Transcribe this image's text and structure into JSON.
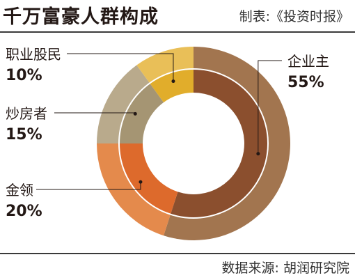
{
  "title": "千万富豪人群构成",
  "credit": "制表:《投资时报》",
  "source": "数据来源: 胡润研究院",
  "chart_data": {
    "type": "pie",
    "style": "donut",
    "categories": [
      "企业主",
      "金领",
      "炒房者",
      "职业股民"
    ],
    "values": [
      55,
      20,
      15,
      10
    ],
    "value_labels": [
      "55%",
      "20%",
      "15%",
      "10%"
    ],
    "colors_outer": [
      "#a2754f",
      "#e48a4c",
      "#b9aa8c",
      "#e9bf58"
    ],
    "colors_inner": [
      "#8b4f2e",
      "#dd6a2c",
      "#a59573",
      "#e1ad2b"
    ]
  }
}
